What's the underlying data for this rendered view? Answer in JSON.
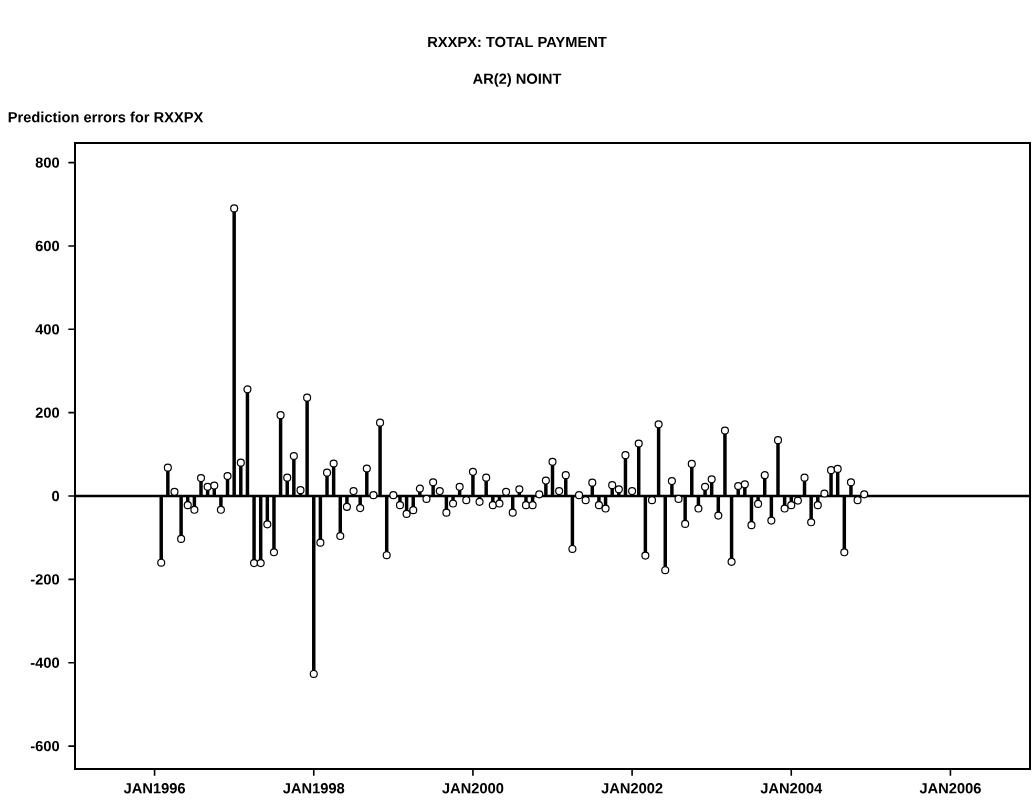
{
  "chart_data": {
    "type": "lollipop",
    "title": "RXXPX: TOTAL PAYMENT",
    "subtitle": "AR(2) NOINT",
    "ylabel": "Prediction errors for RXXPX",
    "x": [
      "1996-02",
      "1996-03",
      "1996-04",
      "1996-05",
      "1996-06",
      "1996-07",
      "1996-08",
      "1996-09",
      "1996-10",
      "1996-11",
      "1996-12",
      "1997-01",
      "1997-02",
      "1997-03",
      "1997-04",
      "1997-05",
      "1997-06",
      "1997-07",
      "1997-08",
      "1997-09",
      "1997-10",
      "1997-11",
      "1997-12",
      "1998-01",
      "1998-02",
      "1998-03",
      "1998-04",
      "1998-05",
      "1998-06",
      "1998-07",
      "1998-08",
      "1998-09",
      "1998-10",
      "1998-11",
      "1998-12",
      "1999-01",
      "1999-02",
      "1999-03",
      "1999-04",
      "1999-05",
      "1999-06",
      "1999-07",
      "1999-08",
      "1999-09",
      "1999-10",
      "1999-11",
      "1999-12",
      "2000-01",
      "2000-02",
      "2000-03",
      "2000-04",
      "2000-05",
      "2000-06",
      "2000-07",
      "2000-08",
      "2000-09",
      "2000-10",
      "2000-11",
      "2000-12",
      "2001-01",
      "2001-02",
      "2001-03",
      "2001-04",
      "2001-05",
      "2001-06",
      "2001-07",
      "2001-08",
      "2001-09",
      "2001-10",
      "2001-11",
      "2001-12",
      "2002-01",
      "2002-02",
      "2002-03",
      "2002-04",
      "2002-05",
      "2002-06",
      "2002-07",
      "2002-08",
      "2002-09",
      "2002-10",
      "2002-11",
      "2002-12",
      "2003-01",
      "2003-02",
      "2003-03",
      "2003-04",
      "2003-05",
      "2003-06",
      "2003-07",
      "2003-08",
      "2003-09",
      "2003-10",
      "2003-11",
      "2003-12",
      "2004-01",
      "2004-02",
      "2004-03",
      "2004-04",
      "2004-05",
      "2004-06",
      "2004-07",
      "2004-08",
      "2004-09",
      "2004-10",
      "2004-11",
      "2004-12"
    ],
    "values": [
      -160,
      68,
      10,
      -103,
      -22,
      -33,
      43,
      22,
      25,
      -33,
      48,
      690,
      80,
      256,
      -161,
      -161,
      -68,
      -135,
      194,
      44,
      96,
      14,
      236,
      -427,
      -112,
      56,
      78,
      -96,
      -26,
      12,
      -29,
      66,
      2,
      176,
      -142,
      2,
      -22,
      -43,
      -34,
      18,
      -7,
      33,
      12,
      -40,
      -18,
      22,
      -10,
      58,
      -14,
      44,
      -22,
      -18,
      10,
      -40,
      16,
      -22,
      -22,
      4,
      37,
      82,
      12,
      50,
      -127,
      2,
      -10,
      32,
      -22,
      -30,
      26,
      16,
      98,
      12,
      126,
      -143,
      -10,
      172,
      -178,
      36,
      -7,
      -67,
      77,
      -30,
      22,
      40,
      -47,
      157,
      -158,
      24,
      28,
      -70,
      -19,
      50,
      -59,
      134,
      -30,
      -22,
      -11,
      44,
      -63,
      -22,
      6,
      62,
      65,
      -135,
      33,
      -10,
      4
    ],
    "color": "#000000",
    "marker": "circle",
    "grid": false,
    "xlim": [
      "1995-01",
      "2007-01"
    ],
    "xticks": [
      {
        "value": "1996-01",
        "label": "JAN1996"
      },
      {
        "value": "1998-01",
        "label": "JAN1998"
      },
      {
        "value": "2000-01",
        "label": "JAN2000"
      },
      {
        "value": "2002-01",
        "label": "JAN2002"
      },
      {
        "value": "2004-01",
        "label": "JAN2004"
      },
      {
        "value": "2006-01",
        "label": "JAN2006"
      }
    ],
    "ylim": [
      -655,
      847
    ],
    "yticks": [
      -600,
      -400,
      -200,
      0,
      200,
      400,
      600,
      800
    ],
    "ref_lines": [
      {
        "axis": "y",
        "value": 0
      }
    ]
  }
}
